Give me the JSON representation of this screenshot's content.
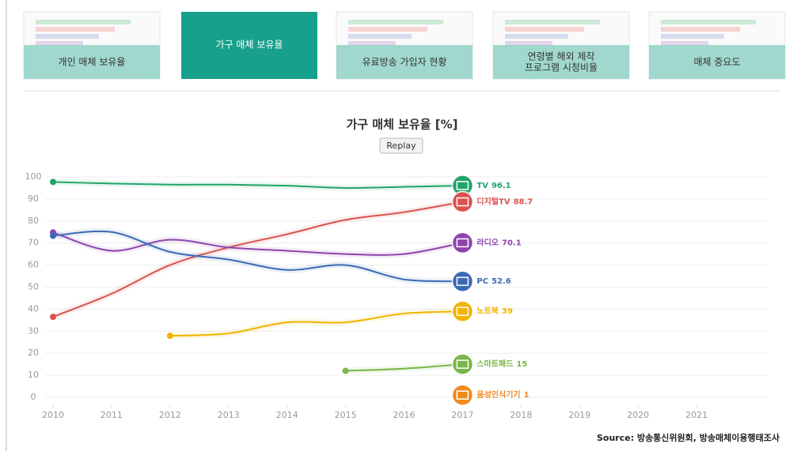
{
  "tabs": [
    {
      "lines": [
        "개인 매체 보유율"
      ],
      "active": false
    },
    {
      "lines": [
        "가구 매체 보유율"
      ],
      "active": true
    },
    {
      "lines": [
        "유료방송 가입자 현황"
      ],
      "active": false
    },
    {
      "lines": [
        "연령별 해외 제작",
        "프로그램 시청비율"
      ],
      "active": false
    },
    {
      "lines": [
        "매체 중요도"
      ],
      "active": false
    }
  ],
  "button": "Replay",
  "source": "Source: 방송통신위원회, 방송매체이용행태조사",
  "chart_data": {
    "type": "line",
    "title": "가구 매체 보유율 [%]",
    "x": [
      2010,
      2011,
      2012,
      2013,
      2014,
      2015,
      2016,
      2017
    ],
    "series": [
      {
        "name": "TV",
        "color": "#23a36b",
        "values": [
          97.7,
          97,
          96.5,
          96.5,
          96,
          95,
          95.5,
          96.1
        ]
      },
      {
        "name": "디지털TV",
        "color": "#d9534f",
        "values": [
          36.5,
          47,
          60,
          68,
          74,
          80.5,
          84,
          88.7
        ]
      },
      {
        "name": "라디오",
        "color": "#8e44ad",
        "values": [
          74.8,
          66.5,
          71.5,
          68,
          66.5,
          65,
          65,
          70.1
        ]
      },
      {
        "name": "PC",
        "color": "#3b6ab5",
        "values": [
          73.3,
          75,
          66,
          62.5,
          57.8,
          60,
          53.5,
          52.6
        ]
      },
      {
        "name": "노트북",
        "color": "#f0b400",
        "values": [
          null,
          null,
          27.9,
          29,
          34,
          34,
          38,
          39
        ]
      },
      {
        "name": "스마트패드",
        "color": "#7ab648",
        "values": [
          null,
          null,
          null,
          null,
          null,
          12,
          13,
          15
        ]
      },
      {
        "name": "음성인식기기",
        "color": "#f08a1e",
        "values": [
          null,
          null,
          null,
          null,
          null,
          null,
          null,
          1
        ]
      }
    ],
    "xlim": [
      2010,
      2022
    ],
    "xticks": [
      2010,
      2011,
      2012,
      2013,
      2014,
      2015,
      2016,
      2017,
      2018,
      2019,
      2020,
      2021
    ],
    "ylim": [
      0,
      100
    ],
    "yticks": [
      0,
      10,
      20,
      30,
      40,
      50,
      60,
      70,
      80,
      90,
      100
    ],
    "grid": true
  }
}
